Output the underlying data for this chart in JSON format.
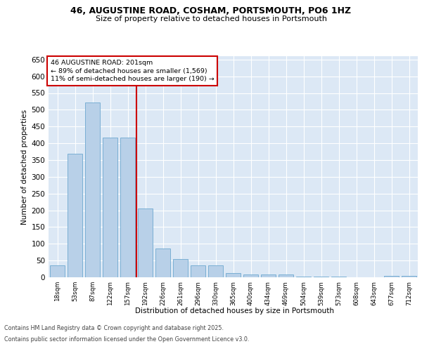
{
  "title_line1": "46, AUGUSTINE ROAD, COSHAM, PORTSMOUTH, PO6 1HZ",
  "title_line2": "Size of property relative to detached houses in Portsmouth",
  "xlabel": "Distribution of detached houses by size in Portsmouth",
  "ylabel": "Number of detached properties",
  "categories": [
    "18sqm",
    "53sqm",
    "87sqm",
    "122sqm",
    "157sqm",
    "192sqm",
    "226sqm",
    "261sqm",
    "296sqm",
    "330sqm",
    "365sqm",
    "400sqm",
    "434sqm",
    "469sqm",
    "504sqm",
    "539sqm",
    "573sqm",
    "608sqm",
    "643sqm",
    "677sqm",
    "712sqm"
  ],
  "values": [
    36,
    368,
    522,
    418,
    418,
    205,
    85,
    55,
    36,
    36,
    12,
    9,
    9,
    8,
    2,
    2,
    2,
    1,
    0,
    5,
    4
  ],
  "bar_color": "#b8d0e8",
  "bar_edge_color": "#7aafd4",
  "background_color": "#dce8f5",
  "grid_color": "#ffffff",
  "vline_x": 4.5,
  "vline_color": "#cc0000",
  "annotation_text": "46 AUGUSTINE ROAD: 201sqm\n← 89% of detached houses are smaller (1,569)\n11% of semi-detached houses are larger (190) →",
  "annotation_box_color": "#ffffff",
  "annotation_box_edge_color": "#cc0000",
  "footer_line1": "Contains HM Land Registry data © Crown copyright and database right 2025.",
  "footer_line2": "Contains public sector information licensed under the Open Government Licence v3.0.",
  "ylim": [
    0,
    660
  ],
  "yticks": [
    0,
    50,
    100,
    150,
    200,
    250,
    300,
    350,
    400,
    450,
    500,
    550,
    600,
    650
  ],
  "fig_bg": "#ffffff",
  "title1_fontsize": 9,
  "title2_fontsize": 8
}
